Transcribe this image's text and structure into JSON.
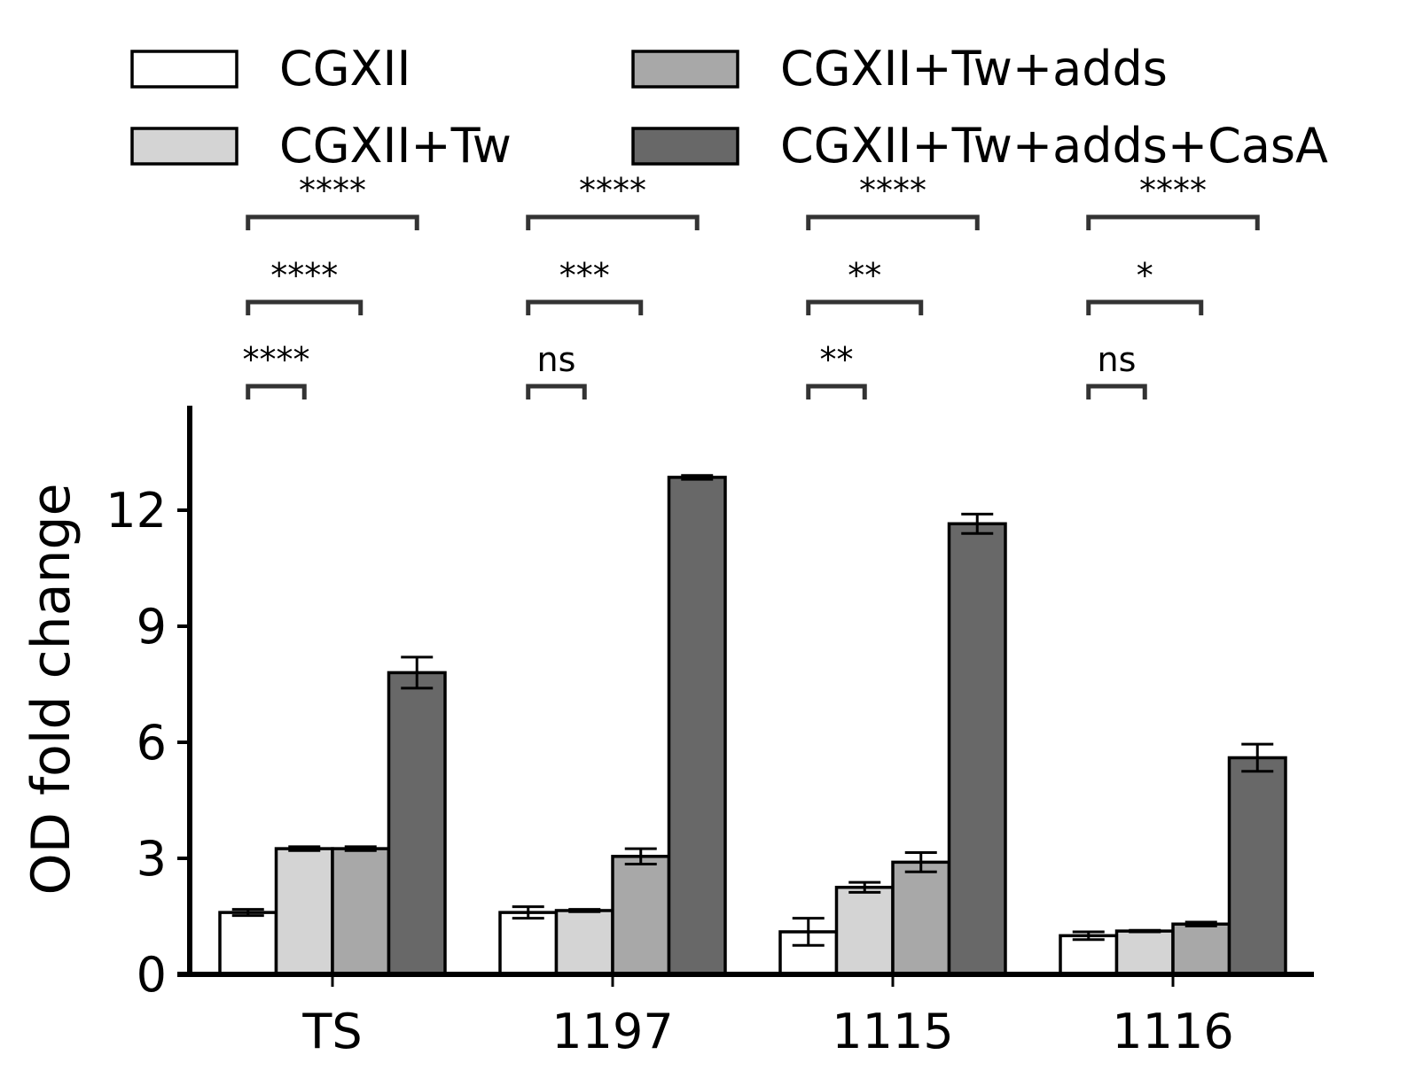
{
  "chart_data": {
    "type": "bar",
    "title": "",
    "xlabel": "",
    "ylabel": "OD fold change",
    "ylim": [
      0,
      14.5
    ],
    "yticks": [
      0,
      3,
      6,
      9,
      12
    ],
    "grid": false,
    "legend_position": "top",
    "categories": [
      "TS",
      "1197",
      "1115",
      "1116"
    ],
    "series": [
      {
        "name": "CGXII",
        "color": "#ffffff",
        "values": [
          1.6,
          1.6,
          1.1,
          1.0
        ],
        "errors": [
          0.08,
          0.15,
          0.35,
          0.1
        ]
      },
      {
        "name": "CGXII+Tw",
        "color": "#d4d4d4",
        "values": [
          3.25,
          1.65,
          2.25,
          1.12
        ],
        "errors": [
          0.05,
          0.03,
          0.13,
          0.02
        ]
      },
      {
        "name": "CGXII+Tw+adds",
        "color": "#a8a8a8",
        "values": [
          3.25,
          3.05,
          2.9,
          1.3
        ],
        "errors": [
          0.05,
          0.2,
          0.25,
          0.05
        ]
      },
      {
        "name": "CGXII+Tw+adds+CasA",
        "color": "#686868",
        "values": [
          7.8,
          12.85,
          11.65,
          5.6
        ],
        "errors": [
          0.4,
          0.05,
          0.25,
          0.35
        ]
      }
    ],
    "significance": [
      {
        "labels": [
          "****",
          "****",
          "****"
        ]
      },
      {
        "labels": [
          "ns",
          "***",
          "****"
        ]
      },
      {
        "labels": [
          "**",
          "**",
          "****"
        ]
      },
      {
        "labels": [
          "ns",
          "*",
          "****"
        ]
      }
    ]
  }
}
